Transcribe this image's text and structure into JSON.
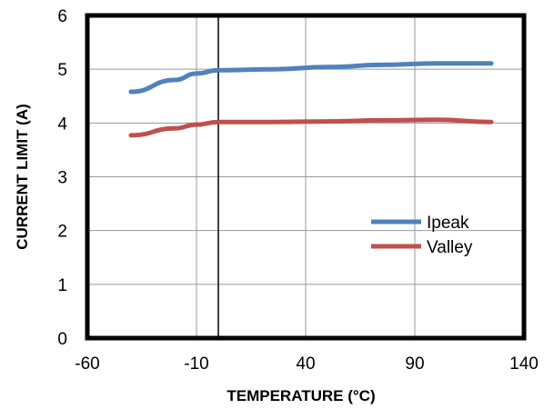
{
  "chart_data": {
    "type": "line",
    "title": "",
    "xlabel": "TEMPERATURE (°C)",
    "ylabel": "CURRENT LIMIT (A)",
    "xlim": [
      -60,
      140
    ],
    "ylim": [
      0,
      6
    ],
    "x_ticks": [
      "-60",
      "-10",
      "40",
      "90",
      "140"
    ],
    "y_ticks": [
      "0",
      "1",
      "2",
      "3",
      "4",
      "5",
      "6"
    ],
    "x_tick_values": [
      -60,
      -10,
      40,
      90,
      140
    ],
    "y_tick_values": [
      0,
      1,
      2,
      3,
      4,
      5,
      6
    ],
    "grid": true,
    "reference_line_x": 0,
    "legend_position": "right-middle",
    "series": [
      {
        "name": "Ipeak",
        "color": "#4f81bd",
        "x": [
          -40,
          -20,
          -10,
          0,
          25,
          50,
          75,
          100,
          125
        ],
        "y": [
          4.58,
          4.8,
          4.92,
          4.98,
          5.0,
          5.04,
          5.08,
          5.11,
          5.11
        ]
      },
      {
        "name": "Valley",
        "color": "#c0504d",
        "x": [
          -40,
          -20,
          -10,
          0,
          25,
          50,
          75,
          100,
          125
        ],
        "y": [
          3.77,
          3.9,
          3.97,
          4.02,
          4.02,
          4.03,
          4.05,
          4.06,
          4.02
        ]
      }
    ]
  }
}
